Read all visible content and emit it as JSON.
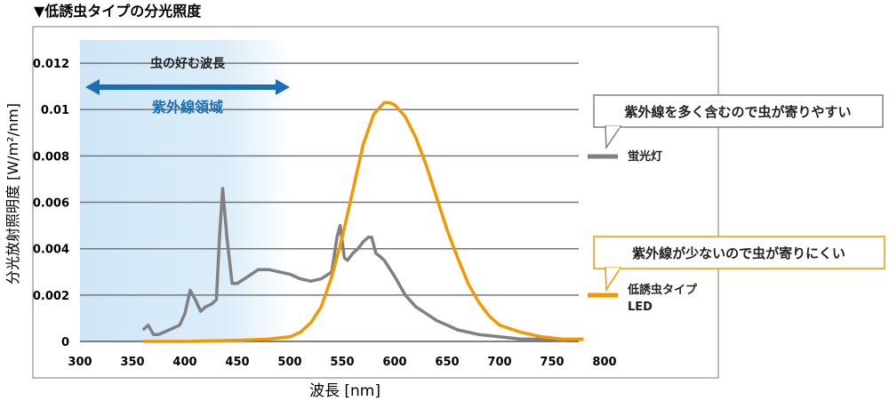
{
  "chart_data": {
    "type": "line",
    "title": "▼低誘虫タイプの分光照度",
    "xlabel": "波長 [nm]",
    "ylabel": "分光放射照明度 [W/m²/nm]",
    "xlim": [
      300,
      800
    ],
    "ylim": [
      0,
      0.013
    ],
    "x_ticks": [
      300,
      350,
      400,
      450,
      500,
      550,
      600,
      650,
      700,
      750,
      800
    ],
    "y_ticks": [
      0,
      0.002,
      0.004,
      0.006,
      0.008,
      0.01,
      0.012
    ],
    "y_tick_labels": [
      "0",
      "0.002",
      "0.004",
      "0.006",
      "0.008",
      "0.01",
      "0.012"
    ],
    "grid": "horizontal",
    "uv_region": {
      "x": [
        300,
        500
      ],
      "label": "紫外線領域",
      "color": "#cfe6f7"
    },
    "insect_band_label": "虫の好む波長",
    "series": [
      {
        "name": "蛍光灯",
        "color": "#808080",
        "x": [
          360,
          365,
          370,
          375,
          380,
          385,
          390,
          395,
          400,
          405,
          410,
          415,
          420,
          425,
          430,
          433,
          436,
          440,
          445,
          450,
          460,
          470,
          480,
          490,
          500,
          510,
          520,
          530,
          540,
          545,
          548,
          552,
          555,
          560,
          565,
          570,
          575,
          578,
          582,
          585,
          590,
          600,
          610,
          620,
          630,
          640,
          650,
          660,
          680,
          700,
          720,
          740,
          760,
          780
        ],
        "y": [
          0.0005,
          0.0007,
          0.0003,
          0.0003,
          0.0004,
          0.0005,
          0.0006,
          0.0007,
          0.0012,
          0.0022,
          0.0018,
          0.0013,
          0.0015,
          0.0016,
          0.0018,
          0.0045,
          0.0066,
          0.0045,
          0.0025,
          0.0025,
          0.0028,
          0.0031,
          0.0031,
          0.003,
          0.0029,
          0.0027,
          0.0026,
          0.0027,
          0.003,
          0.0045,
          0.005,
          0.0036,
          0.0035,
          0.0038,
          0.004,
          0.0043,
          0.0045,
          0.0045,
          0.0038,
          0.0037,
          0.0035,
          0.0028,
          0.002,
          0.0015,
          0.0012,
          0.0009,
          0.0007,
          0.0005,
          0.0003,
          0.0002,
          0.0001,
          0.0001,
          5e-05,
          0.0001
        ]
      },
      {
        "name": "低誘虫タイプLED",
        "color": "#f39800",
        "x": [
          360,
          400,
          450,
          480,
          500,
          510,
          520,
          530,
          540,
          550,
          560,
          570,
          580,
          590,
          595,
          600,
          610,
          620,
          630,
          640,
          650,
          660,
          670,
          680,
          690,
          700,
          720,
          740,
          760,
          780
        ],
        "y": [
          0,
          0,
          5e-05,
          0.0001,
          0.0002,
          0.0004,
          0.0008,
          0.0015,
          0.0028,
          0.0045,
          0.0065,
          0.0085,
          0.0098,
          0.0103,
          0.0103,
          0.0102,
          0.0097,
          0.0088,
          0.0076,
          0.0062,
          0.0048,
          0.0036,
          0.0025,
          0.0017,
          0.0011,
          0.0007,
          0.0004,
          0.0002,
          0.0001,
          0.0001
        ]
      }
    ],
    "legend": [
      {
        "label": "蛍光灯",
        "color": "#808080",
        "callout": "紫外線を多く含むので虫が寄りやすい",
        "callout_border": "#808080"
      },
      {
        "label_lines": [
          "低誘虫タイプ",
          "LED"
        ],
        "color": "#f39800",
        "callout": "紫外線が少ないので虫が寄りにくい",
        "callout_border": "#f39800"
      }
    ],
    "accent_color": "#1a6eb5"
  }
}
